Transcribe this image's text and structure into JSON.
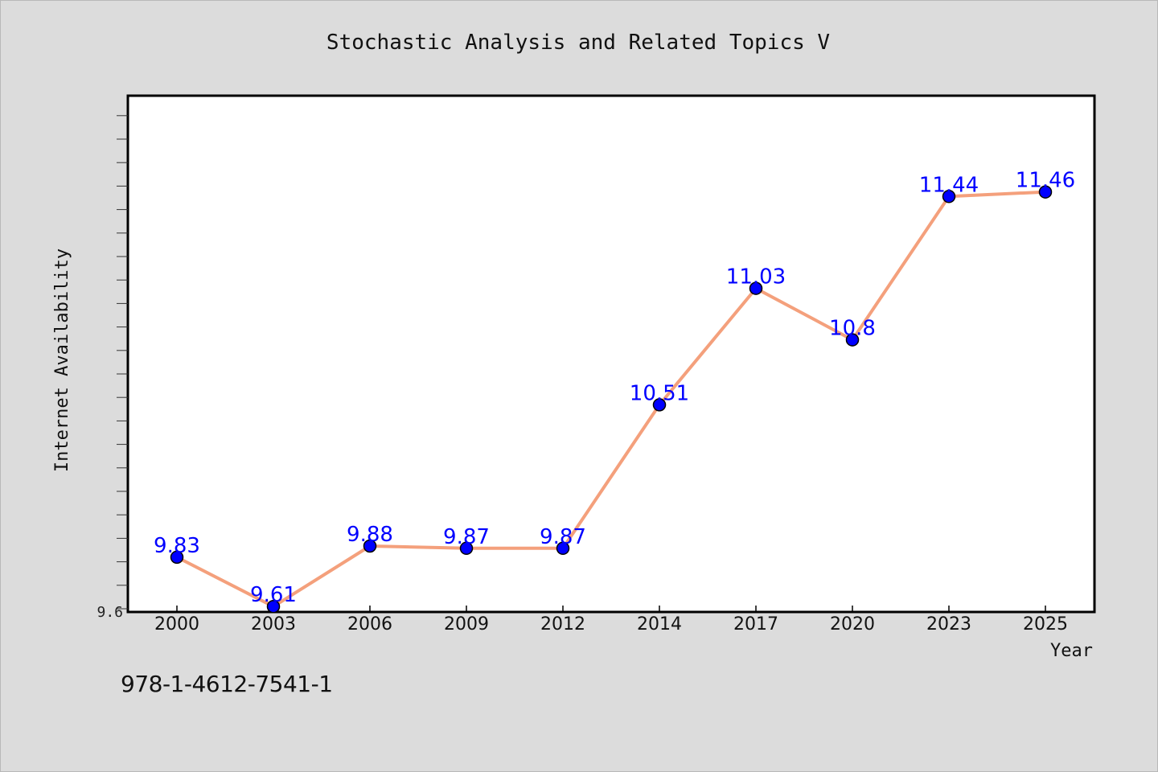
{
  "chart_data": {
    "type": "line",
    "title": "Stochastic Analysis and Related Topics V",
    "xlabel": "Year",
    "ylabel": "Internet Availability",
    "categories": [
      "2000",
      "2003",
      "2006",
      "2009",
      "2012",
      "2014",
      "2017",
      "2020",
      "2023",
      "2025"
    ],
    "series": [
      {
        "values": [
          9.83,
          9.61,
          9.88,
          9.87,
          9.87,
          10.51,
          11.03,
          10.8,
          11.44,
          11.46
        ],
        "labels": [
          "9.83",
          "9.61",
          "9.88",
          "9.87",
          "9.87",
          "10.51",
          "11.03",
          "10.8",
          "11.44",
          "11.46"
        ]
      }
    ],
    "ylim": [
      9.6,
      11.8
    ],
    "y_tick_label": "9.6",
    "grid": false,
    "colors": {
      "line": "#f4a07c",
      "marker": "#0000ff",
      "data_label": "#0000ff",
      "plot_background": "#ffffff",
      "page_background": "#dcdcdc"
    }
  },
  "footer": {
    "isbn": "978-1-4612-7541-1"
  }
}
